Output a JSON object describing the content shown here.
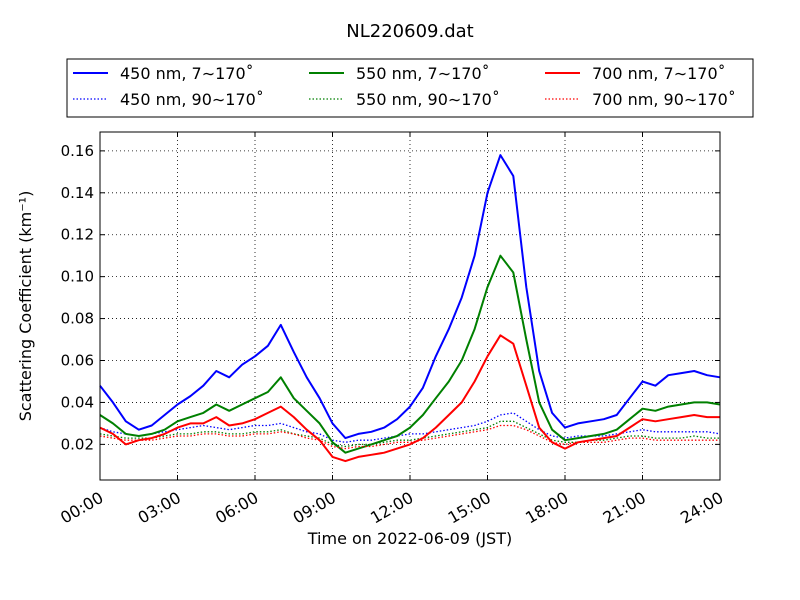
{
  "chart_data": {
    "type": "line",
    "title": "NL220609.dat",
    "xlabel": "Time on 2022-06-09 (JST)",
    "ylabel": "Scattering Coefficient (km⁻¹)",
    "x_ticks": [
      "00:00",
      "03:00",
      "06:00",
      "09:00",
      "12:00",
      "15:00",
      "18:00",
      "21:00",
      "24:00"
    ],
    "y_ticks": [
      "0.02",
      "0.04",
      "0.06",
      "0.08",
      "0.10",
      "0.12",
      "0.14",
      "0.16"
    ],
    "xlim": [
      0,
      24
    ],
    "ylim": [
      0.003,
      0.169
    ],
    "grid": true,
    "legend_position": "above plot",
    "x_unit": "hours",
    "x": [
      0,
      0.5,
      1,
      1.5,
      2,
      2.5,
      3,
      3.5,
      4,
      4.5,
      5,
      5.5,
      6,
      6.5,
      7,
      7.5,
      8,
      8.5,
      9,
      9.5,
      10,
      10.5,
      11,
      11.5,
      12,
      12.5,
      13,
      13.5,
      14,
      14.5,
      15,
      15.5,
      16,
      16.5,
      17,
      17.5,
      18,
      18.5,
      19,
      19.5,
      20,
      20.5,
      21,
      21.5,
      22,
      22.5,
      23,
      23.5,
      24
    ],
    "series": [
      {
        "name": "450 nm, 7∼170˚",
        "color": "#0000ff",
        "style": "solid",
        "values": [
          0.048,
          0.04,
          0.031,
          0.027,
          0.029,
          0.034,
          0.039,
          0.043,
          0.048,
          0.055,
          0.052,
          0.058,
          0.062,
          0.067,
          0.077,
          0.064,
          0.052,
          0.042,
          0.03,
          0.023,
          0.025,
          0.026,
          0.028,
          0.032,
          0.038,
          0.047,
          0.062,
          0.075,
          0.09,
          0.11,
          0.14,
          0.158,
          0.148,
          0.095,
          0.055,
          0.035,
          0.028,
          0.03,
          0.031,
          0.032,
          0.034,
          0.042,
          0.05,
          0.048,
          0.053,
          0.054,
          0.055,
          0.053,
          0.052
        ]
      },
      {
        "name": "450 nm, 90∼170˚",
        "color": "#0000ff",
        "style": "dotted",
        "values": [
          0.028,
          0.026,
          0.025,
          0.024,
          0.025,
          0.026,
          0.027,
          0.028,
          0.029,
          0.028,
          0.027,
          0.028,
          0.029,
          0.029,
          0.03,
          0.028,
          0.026,
          0.025,
          0.022,
          0.021,
          0.022,
          0.022,
          0.023,
          0.024,
          0.025,
          0.025,
          0.026,
          0.027,
          0.028,
          0.029,
          0.031,
          0.034,
          0.035,
          0.031,
          0.027,
          0.024,
          0.023,
          0.024,
          0.024,
          0.024,
          0.025,
          0.026,
          0.027,
          0.026,
          0.026,
          0.026,
          0.026,
          0.026,
          0.025
        ]
      },
      {
        "name": "550 nm, 7∼170˚",
        "color": "#008000",
        "style": "solid",
        "values": [
          0.034,
          0.03,
          0.025,
          0.024,
          0.025,
          0.027,
          0.031,
          0.033,
          0.035,
          0.039,
          0.036,
          0.039,
          0.042,
          0.045,
          0.052,
          0.042,
          0.036,
          0.03,
          0.021,
          0.016,
          0.018,
          0.02,
          0.022,
          0.024,
          0.028,
          0.034,
          0.042,
          0.05,
          0.06,
          0.075,
          0.095,
          0.11,
          0.102,
          0.07,
          0.04,
          0.027,
          0.022,
          0.023,
          0.024,
          0.025,
          0.027,
          0.032,
          0.037,
          0.036,
          0.038,
          0.039,
          0.04,
          0.04,
          0.039
        ]
      },
      {
        "name": "550 nm, 90∼170˚",
        "color": "#008000",
        "style": "dotted",
        "values": [
          0.025,
          0.024,
          0.023,
          0.023,
          0.023,
          0.024,
          0.025,
          0.025,
          0.026,
          0.026,
          0.025,
          0.025,
          0.026,
          0.026,
          0.027,
          0.025,
          0.024,
          0.023,
          0.02,
          0.019,
          0.02,
          0.02,
          0.021,
          0.022,
          0.022,
          0.023,
          0.024,
          0.025,
          0.026,
          0.027,
          0.028,
          0.031,
          0.031,
          0.028,
          0.025,
          0.022,
          0.021,
          0.021,
          0.022,
          0.022,
          0.023,
          0.024,
          0.024,
          0.023,
          0.023,
          0.023,
          0.024,
          0.023,
          0.023
        ]
      },
      {
        "name": "700 nm, 7∼170˚",
        "color": "#ff0000",
        "style": "solid",
        "values": [
          0.028,
          0.025,
          0.02,
          0.022,
          0.023,
          0.025,
          0.028,
          0.03,
          0.03,
          0.033,
          0.029,
          0.03,
          0.032,
          0.035,
          0.038,
          0.033,
          0.027,
          0.022,
          0.014,
          0.012,
          0.014,
          0.015,
          0.016,
          0.018,
          0.02,
          0.023,
          0.028,
          0.034,
          0.04,
          0.05,
          0.062,
          0.072,
          0.068,
          0.048,
          0.028,
          0.021,
          0.018,
          0.021,
          0.022,
          0.023,
          0.024,
          0.028,
          0.032,
          0.031,
          0.032,
          0.033,
          0.034,
          0.033,
          0.033
        ]
      },
      {
        "name": "700 nm, 90∼170˚",
        "color": "#ff0000",
        "style": "dotted",
        "values": [
          0.024,
          0.023,
          0.022,
          0.022,
          0.022,
          0.023,
          0.024,
          0.024,
          0.025,
          0.025,
          0.024,
          0.024,
          0.025,
          0.025,
          0.026,
          0.025,
          0.023,
          0.022,
          0.019,
          0.018,
          0.019,
          0.019,
          0.02,
          0.021,
          0.021,
          0.022,
          0.023,
          0.024,
          0.025,
          0.026,
          0.027,
          0.029,
          0.029,
          0.027,
          0.024,
          0.021,
          0.02,
          0.021,
          0.021,
          0.021,
          0.022,
          0.023,
          0.023,
          0.022,
          0.022,
          0.022,
          0.022,
          0.022,
          0.022
        ]
      }
    ]
  }
}
